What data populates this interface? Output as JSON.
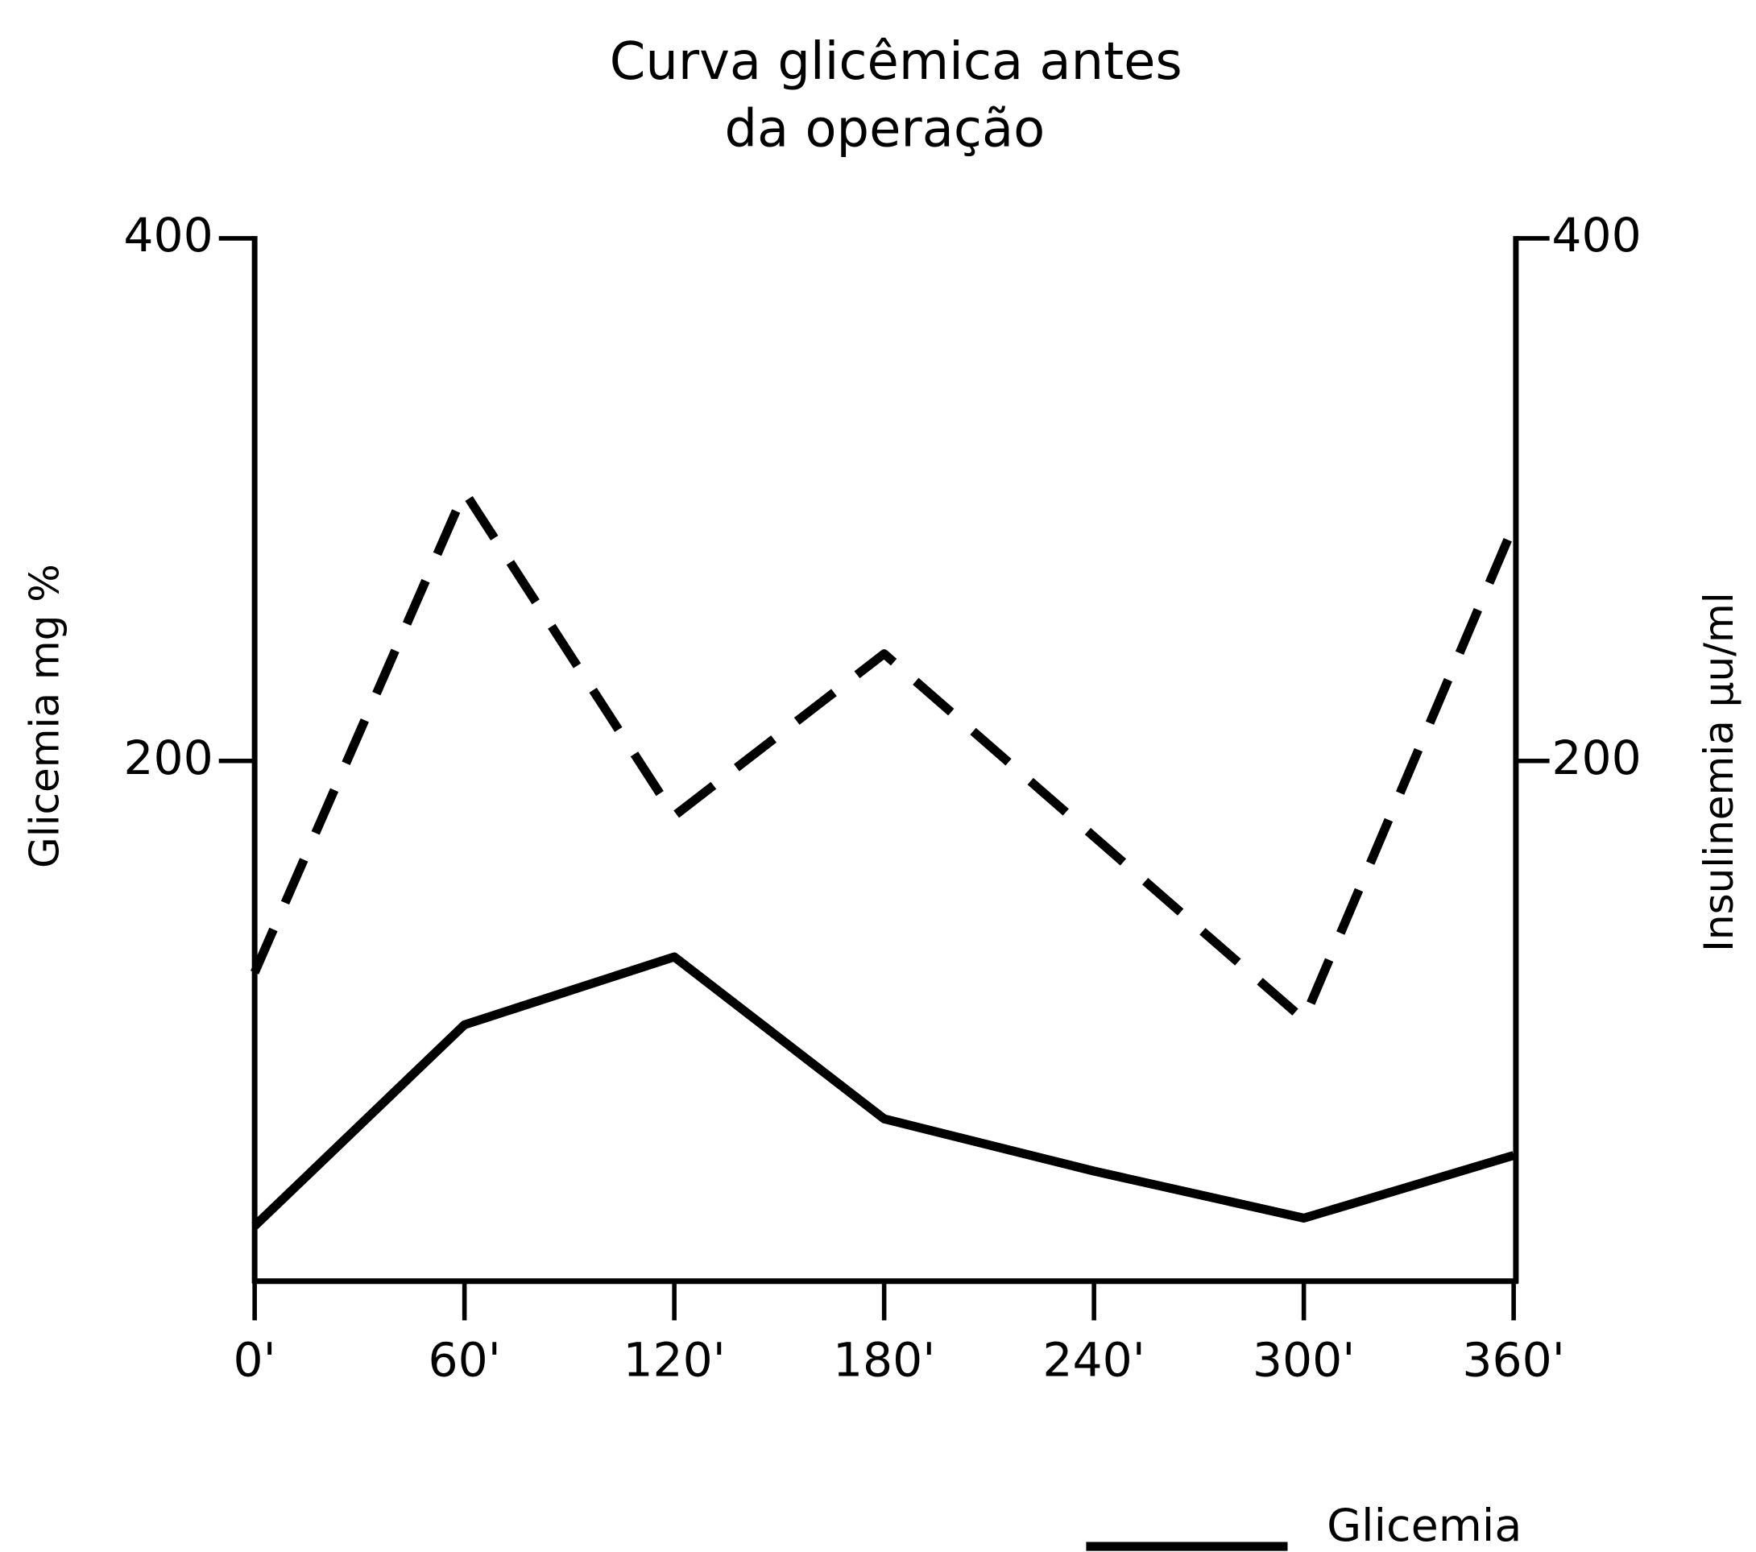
{
  "chart_data": {
    "type": "line",
    "title": [
      "Curva glicêmica antes",
      "da operação"
    ],
    "y_label": "Glicemia mg %",
    "y2_label": "Insulinemia µu/ml",
    "categories": [
      "0'",
      "60'",
      "120'",
      "180'",
      "240'",
      "300'",
      "360'"
    ],
    "series": [
      {
        "name": "Glicemia",
        "color": "#000000",
        "style": "solid",
        "values": [
          22,
          99,
          125,
          63,
          43,
          25,
          49
        ]
      },
      {
        "color": "#000000",
        "style": "dashed",
        "axis": "y2",
        "values": [
          119,
          303,
          179,
          241,
          171,
          101,
          290
        ]
      }
    ],
    "ylim": [
      0,
      400
    ],
    "yticks": [
      200,
      400
    ],
    "y2lim": [
      0,
      400
    ],
    "y2ticks": [
      200,
      400
    ],
    "grid": false,
    "legend": "bottom-right"
  }
}
